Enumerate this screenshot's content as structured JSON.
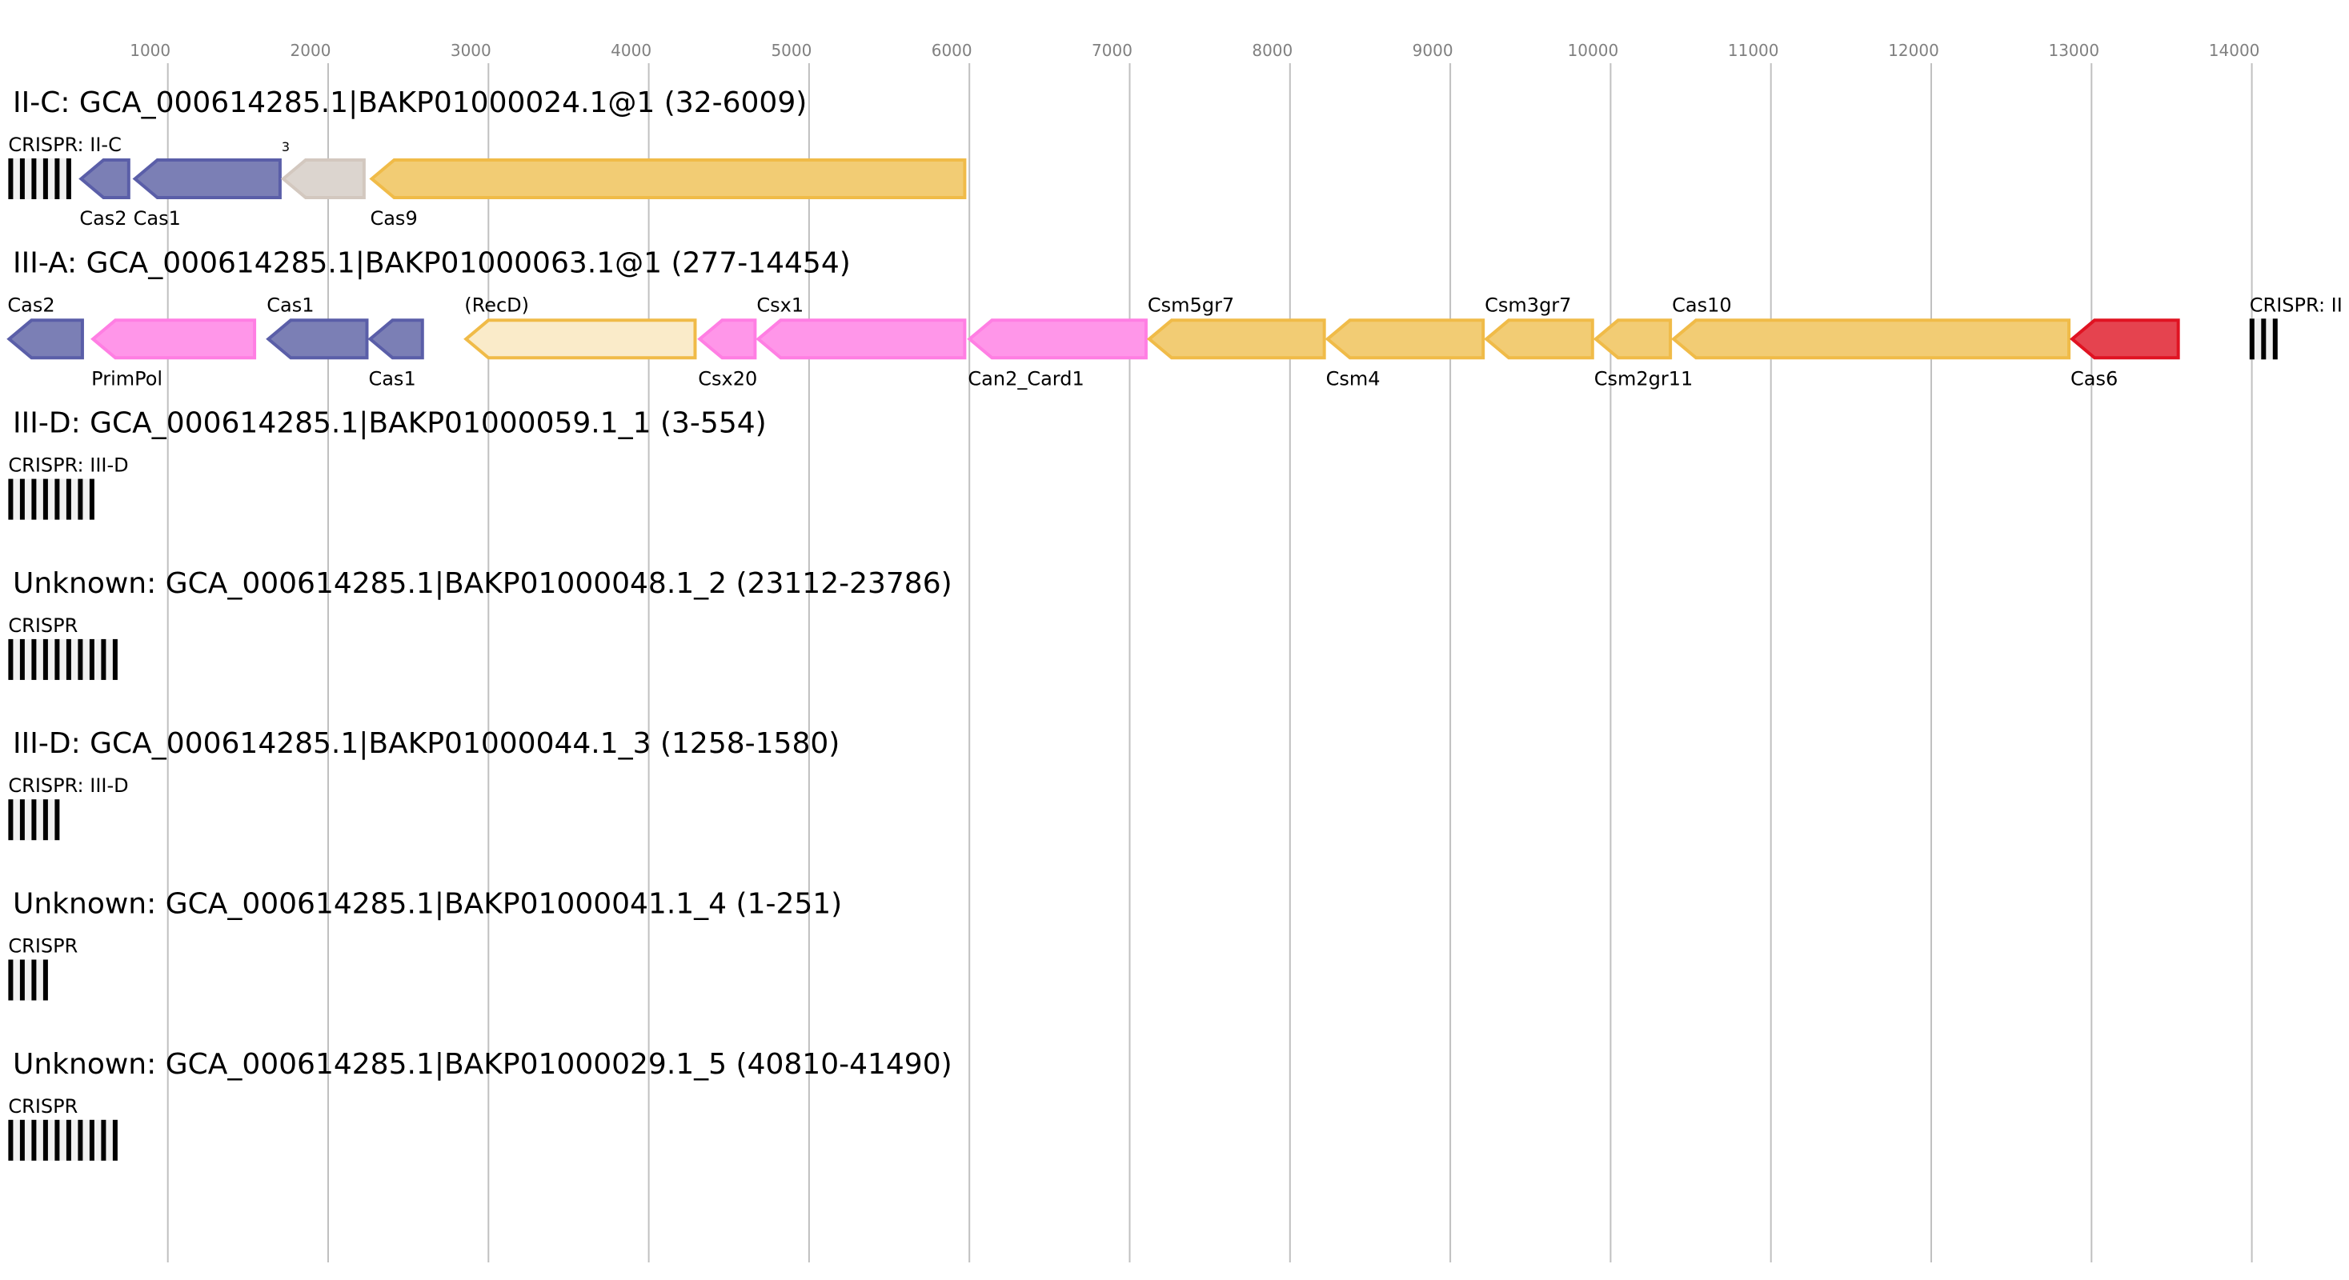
{
  "axis": {
    "ticks": [
      1000,
      2000,
      3000,
      4000,
      5000,
      6000,
      7000,
      8000,
      9000,
      10000,
      11000,
      12000,
      13000,
      14000
    ],
    "range": [
      0,
      14600
    ],
    "grid": true
  },
  "colors": {
    "blue": {
      "fill": "#7b7fb5",
      "stroke": "#5a5ea8"
    },
    "pink": {
      "fill": "#ff96e9",
      "stroke": "#ff7ee3"
    },
    "gold": {
      "fill": "#f2cc74",
      "stroke": "#f0bb48"
    },
    "beige": {
      "fill": "#dcd5cf",
      "stroke": "#d3c8bf"
    },
    "lightgold": {
      "fill": "#faebc9",
      "stroke": "#f0bb48"
    },
    "red": {
      "fill": "#e5434f",
      "stroke": "#e01322"
    }
  },
  "tracks": [
    {
      "title": "II-C: GCA_000614285.1|BAKP01000024.1@1 (32-6009)",
      "crisprs": [
        {
          "label": "CRISPR: II-C",
          "start": 0,
          "repeats": 6
        }
      ],
      "genes": [
        {
          "label": "Cas2",
          "start": 449,
          "end": 766,
          "color": "blue",
          "label_pos": "above"
        },
        {
          "label": "Cas1",
          "start": 785,
          "end": 1710,
          "color": "blue",
          "label_pos": "below"
        },
        {
          "label": "3",
          "start": 1710,
          "end": 2234,
          "color": "beige",
          "label_pos": "above-small"
        },
        {
          "label": "Cas9",
          "start": 2262,
          "end": 5981,
          "color": "gold",
          "label_pos": "below"
        }
      ]
    },
    {
      "title": "III-A: GCA_000614285.1|BAKP01000063.1@1 (277-14454)",
      "crisprs": [
        {
          "label": "CRISPR: II",
          "start": 13981,
          "repeats": 3
        }
      ],
      "genes": [
        {
          "label": "Cas2",
          "start": 0,
          "end": 477,
          "color": "blue",
          "label_pos": "above"
        },
        {
          "label": "PrimPol",
          "start": 523,
          "end": 1551,
          "color": "pink",
          "label_pos": "below"
        },
        {
          "label": "Cas1",
          "start": 1617,
          "end": 2252,
          "color": "blue",
          "label_pos": "above"
        },
        {
          "label": "Cas1",
          "start": 2252,
          "end": 2598,
          "color": "blue",
          "label_pos": "below"
        },
        {
          "label": "(RecD)",
          "start": 2850,
          "end": 4299,
          "color": "lightgold",
          "label_pos": "above"
        },
        {
          "label": "Csx20",
          "start": 4308,
          "end": 4673,
          "color": "pink",
          "label_pos": "below"
        },
        {
          "label": "Csx1",
          "start": 4673,
          "end": 5981,
          "color": "pink",
          "label_pos": "above"
        },
        {
          "label": "Can2_Card1",
          "start": 5991,
          "end": 7112,
          "color": "pink",
          "label_pos": "below"
        },
        {
          "label": "Csm5gr7",
          "start": 7112,
          "end": 8224,
          "color": "gold",
          "label_pos": "above"
        },
        {
          "label": "Csm4",
          "start": 8224,
          "end": 9215,
          "color": "gold",
          "label_pos": "below"
        },
        {
          "label": "Csm3gr7",
          "start": 9215,
          "end": 9897,
          "color": "gold",
          "label_pos": "above"
        },
        {
          "label": "Csm2gr11",
          "start": 9897,
          "end": 10383,
          "color": "gold",
          "label_pos": "below"
        },
        {
          "label": "Cas10",
          "start": 10383,
          "end": 12869,
          "color": "gold",
          "label_pos": "above"
        },
        {
          "label": "Cas6",
          "start": 12869,
          "end": 13551,
          "color": "red",
          "label_pos": "below"
        }
      ]
    },
    {
      "title": "III-D: GCA_000614285.1|BAKP01000059.1_1 (3-554)",
      "crisprs": [
        {
          "label": "CRISPR: III-D",
          "start": 0,
          "repeats": 8
        }
      ],
      "genes": []
    },
    {
      "title": "Unknown: GCA_000614285.1|BAKP01000048.1_2 (23112-23786)",
      "crisprs": [
        {
          "label": "CRISPR",
          "start": 0,
          "repeats": 10
        }
      ],
      "genes": []
    },
    {
      "title": "III-D: GCA_000614285.1|BAKP01000044.1_3 (1258-1580)",
      "crisprs": [
        {
          "label": "CRISPR: III-D",
          "start": 0,
          "repeats": 5
        }
      ],
      "genes": []
    },
    {
      "title": "Unknown: GCA_000614285.1|BAKP01000041.1_4 (1-251)",
      "crisprs": [
        {
          "label": "CRISPR",
          "start": 0,
          "repeats": 4
        }
      ],
      "genes": []
    },
    {
      "title": "Unknown: GCA_000614285.1|BAKP01000029.1_5 (40810-41490)",
      "crisprs": [
        {
          "label": "CRISPR",
          "start": 0,
          "repeats": 10
        }
      ],
      "genes": []
    }
  ]
}
